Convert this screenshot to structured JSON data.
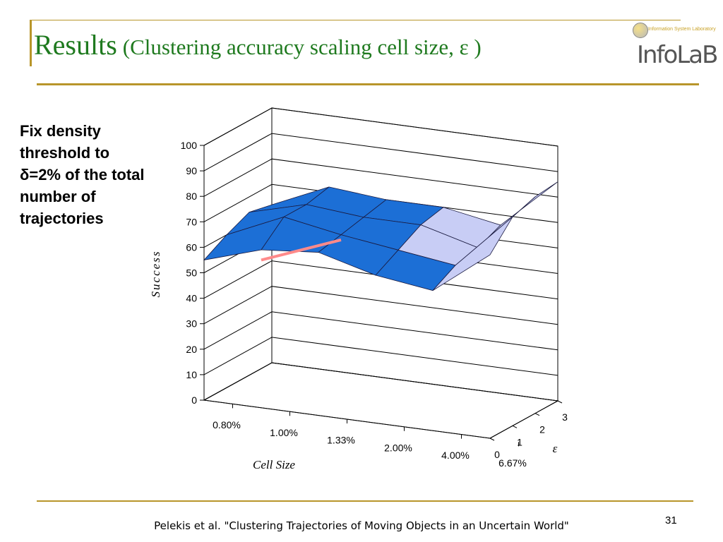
{
  "slide": {
    "title_main": "Results",
    "title_sub": "(Clustering accuracy scaling cell size, ε )",
    "side_note": "Fix density threshold to δ=2% of the total number of trajectories",
    "footer": "Pelekis et al. \"Clustering Trajectories of Moving Objects in an Uncertain World\"",
    "page_number": "31",
    "logo_text": "InfoLaB",
    "logo_tagline": "Information System Laboratory"
  },
  "colors": {
    "accent": "#b8952a",
    "title": "#1f7a1f",
    "grid": "#000000",
    "series": [
      "#1c6fd6",
      "#0b1f9a",
      "#c8cdf5",
      "#ff8a8a"
    ]
  },
  "chart_data": {
    "type": "surface",
    "title": "",
    "xlabel": "Cell Size",
    "ylabel": "Success",
    "zlabel": "ε",
    "ylim": [
      0,
      100
    ],
    "yticks": [
      "0",
      "10",
      "20",
      "30",
      "40",
      "50",
      "60",
      "70",
      "80",
      "90",
      "100"
    ],
    "categories": [
      "0.80%",
      "1.00%",
      "1.33%",
      "2.00%",
      "4.00%",
      "6.67%"
    ],
    "depth_categories": [
      "0",
      "1",
      "2",
      "3"
    ],
    "series": [
      {
        "name": "0",
        "values": [
          55,
          62,
          64,
          58,
          55,
          72
        ]
      },
      {
        "name": "1",
        "values": [
          60,
          70,
          66,
          63,
          60,
          82
        ]
      },
      {
        "name": "2",
        "values": [
          64,
          70,
          68,
          68,
          62,
          85
        ]
      },
      {
        "name": "3",
        "values": [
          62,
          72,
          70,
          70,
          66,
          86
        ]
      }
    ]
  }
}
